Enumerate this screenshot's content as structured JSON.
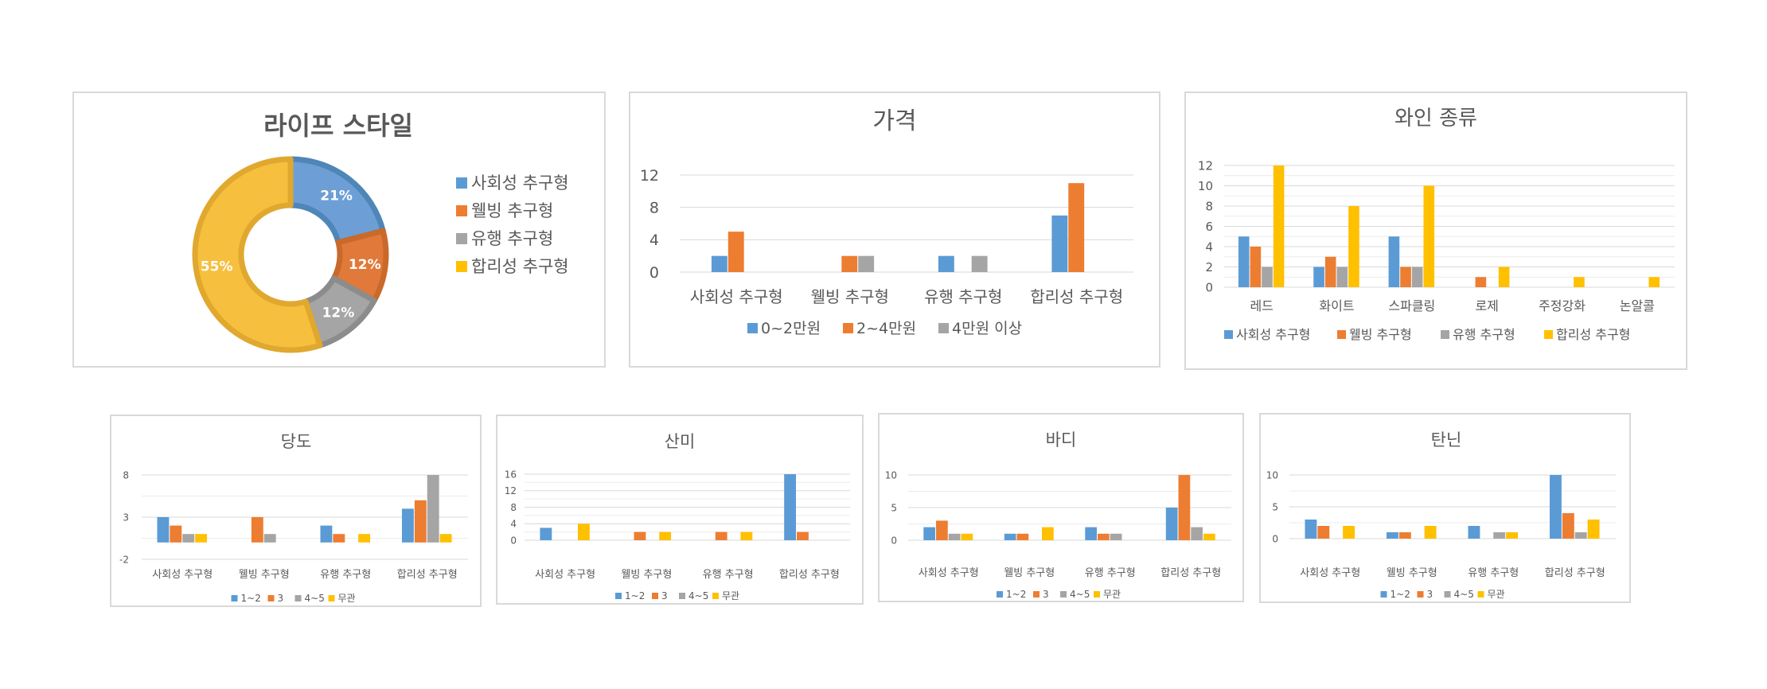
{
  "colors": {
    "blue": "#5B9BD5",
    "orange": "#ED7D31",
    "gray": "#A5A5A5",
    "yellow": "#FFC000",
    "grid": "#d9d9d9",
    "text": "#595959"
  },
  "chart_data": [
    {
      "id": "lifestyle",
      "type": "pie",
      "title": "라이프 스타일",
      "labels": [
        "사회성 추구형",
        "웰빙 추구형",
        "유행 추구형",
        "합리성 추구형"
      ],
      "values": [
        21,
        12,
        12,
        55
      ],
      "data_labels": [
        "21%",
        "12%",
        "12%",
        "55%"
      ],
      "legend_position": "right"
    },
    {
      "id": "price",
      "type": "bar",
      "title": "가격",
      "categories": [
        "사회성 추구형",
        "웰빙 추구형",
        "유행 추구형",
        "합리성 추구형"
      ],
      "series": [
        {
          "name": "0~2만원",
          "values": [
            2,
            0,
            2,
            7
          ]
        },
        {
          "name": "2~4만원",
          "values": [
            5,
            2,
            0,
            11
          ]
        },
        {
          "name": "4만원 이상",
          "values": [
            0,
            2,
            2,
            0
          ]
        }
      ],
      "yticks": [
        "0",
        "4",
        "8",
        "12"
      ],
      "ylim": [
        0,
        12
      ],
      "legend_position": "bottom",
      "grid": true
    },
    {
      "id": "wine-type",
      "type": "bar",
      "title": "와인 종류",
      "categories": [
        "레드",
        "화이트",
        "스파클링",
        "로제",
        "주정강화",
        "논알콜"
      ],
      "series": [
        {
          "name": "사회성 추구형",
          "values": [
            5,
            2,
            5,
            0,
            0,
            0
          ]
        },
        {
          "name": "웰빙 추구형",
          "values": [
            4,
            3,
            2,
            1,
            0,
            0
          ]
        },
        {
          "name": "유행 추구형",
          "values": [
            2,
            2,
            2,
            0,
            0,
            0
          ]
        },
        {
          "name": "합리성 추구형",
          "values": [
            12,
            8,
            10,
            2,
            1,
            1
          ]
        }
      ],
      "yticks": [
        "0",
        "2",
        "4",
        "6",
        "8",
        "10",
        "12"
      ],
      "ylim": [
        0,
        12
      ],
      "legend_position": "bottom",
      "grid": true
    },
    {
      "id": "sweetness",
      "type": "bar",
      "title": "당도",
      "categories": [
        "사회성 추구형",
        "웰빙 추구형",
        "유행 추구형",
        "합리성 추구형"
      ],
      "series": [
        {
          "name": "1~2",
          "values": [
            3,
            0,
            2,
            4
          ]
        },
        {
          "name": "3",
          "values": [
            2,
            3,
            1,
            5
          ]
        },
        {
          "name": "4~5",
          "values": [
            1,
            1,
            0,
            8
          ]
        },
        {
          "name": "무관",
          "values": [
            1,
            0,
            1,
            1
          ]
        }
      ],
      "yticks": [
        "-2",
        "3",
        "8"
      ],
      "ylim": [
        -2,
        8
      ],
      "legend_position": "bottom",
      "grid": true
    },
    {
      "id": "acidity",
      "type": "bar",
      "title": "산미",
      "categories": [
        "사회성 추구형",
        "웰빙 추구형",
        "유행 추구형",
        "합리성 추구형"
      ],
      "series": [
        {
          "name": "1~2",
          "values": [
            3,
            0,
            0,
            16
          ]
        },
        {
          "name": "3",
          "values": [
            0,
            2,
            2,
            2
          ]
        },
        {
          "name": "4~5",
          "values": [
            0,
            0,
            0,
            0
          ]
        },
        {
          "name": "무관",
          "values": [
            4,
            2,
            2,
            0
          ]
        }
      ],
      "yticks": [
        "0",
        "4",
        "8",
        "12",
        "16"
      ],
      "ylim": [
        0,
        16
      ],
      "legend_position": "bottom",
      "grid": true
    },
    {
      "id": "body",
      "type": "bar",
      "title": "바디",
      "categories": [
        "사회성 추구형",
        "웰빙 추구형",
        "유행 추구형",
        "합리성 추구형"
      ],
      "series": [
        {
          "name": "1~2",
          "values": [
            2,
            1,
            2,
            5
          ]
        },
        {
          "name": "3",
          "values": [
            3,
            1,
            1,
            10
          ]
        },
        {
          "name": "4~5",
          "values": [
            1,
            0,
            1,
            2
          ]
        },
        {
          "name": "무관",
          "values": [
            1,
            2,
            0,
            1
          ]
        }
      ],
      "yticks": [
        "0",
        "5",
        "10"
      ],
      "ylim": [
        0,
        10
      ],
      "legend_position": "bottom",
      "grid": true
    },
    {
      "id": "tannin",
      "type": "bar",
      "title": "탄닌",
      "categories": [
        "사회성 추구형",
        "웰빙 추구형",
        "유행 추구형",
        "합리성 추구형"
      ],
      "series": [
        {
          "name": "1~2",
          "values": [
            3,
            1,
            2,
            10
          ]
        },
        {
          "name": "3",
          "values": [
            2,
            1,
            0,
            4
          ]
        },
        {
          "name": "4~5",
          "values": [
            0,
            0,
            1,
            1
          ]
        },
        {
          "name": "무관",
          "values": [
            2,
            2,
            1,
            3
          ]
        }
      ],
      "yticks": [
        "0",
        "5",
        "10"
      ],
      "ylim": [
        0,
        10
      ],
      "legend_position": "bottom",
      "grid": true
    }
  ]
}
